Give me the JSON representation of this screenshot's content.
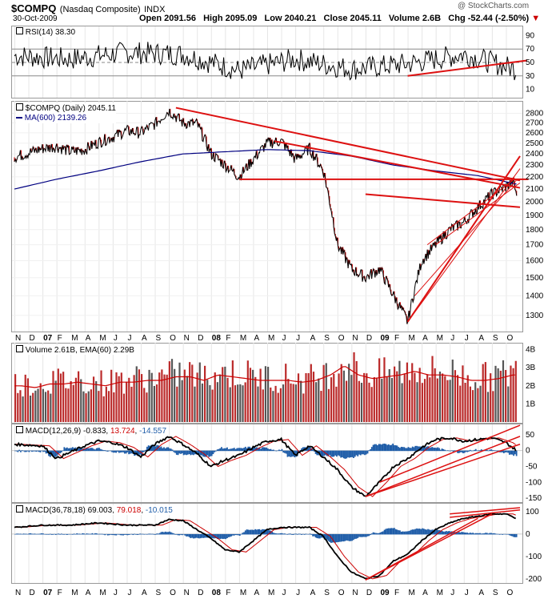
{
  "header": {
    "symbol": "$COMPQ",
    "name": "(Nasdaq Composite)",
    "exchange": "INDX",
    "date": "30-Oct-2009",
    "open": "Open 2091.56",
    "high": "High 2095.09",
    "low": "Low 2040.21",
    "close": "Close 2045.11",
    "volume": "Volume 2.6B",
    "chg": "Chg -52.44 (-2.50%)",
    "watermark": "@ StockCharts.com"
  },
  "colors": {
    "price_line": "#000000",
    "down_bar": "#cc0000",
    "ma_line": "#000080",
    "trend": "#dd1111",
    "volume_bar": "#bb2a2a",
    "histogram": "#1f5da8",
    "frame": "#999999"
  },
  "chart_data": [
    {
      "type": "line",
      "title": "RSI(14) 38.30",
      "y_ticks": [
        10,
        30,
        50,
        70,
        90
      ],
      "ylim": [
        0,
        100
      ],
      "reference_lines": [
        30,
        50,
        70
      ],
      "x": [
        "2006-11",
        "2007-03",
        "2007-07",
        "2007-10",
        "2008-03",
        "2008-07",
        "2008-11",
        "2009-03",
        "2009-07",
        "2009-10"
      ],
      "values": [
        60,
        55,
        65,
        62,
        38,
        55,
        40,
        48,
        62,
        38
      ]
    },
    {
      "type": "line",
      "title": "$COMPQ (Daily) 2045.11",
      "legend": [
        "MA(600) 2139.26"
      ],
      "scale": "log",
      "y_ticks": [
        1300,
        1400,
        1500,
        1600,
        1700,
        1800,
        1900,
        2000,
        2100,
        2200,
        2300,
        2400,
        2500,
        2600,
        2700,
        2800
      ],
      "ylim": [
        1230,
        2900
      ],
      "x_labels": [
        "N",
        "D",
        "07",
        "F",
        "M",
        "A",
        "M",
        "J",
        "J",
        "A",
        "S",
        "O",
        "N",
        "D",
        "08",
        "F",
        "M",
        "A",
        "M",
        "J",
        "J",
        "A",
        "S",
        "O",
        "N",
        "D",
        "09",
        "F",
        "M",
        "A",
        "M",
        "J",
        "J",
        "A",
        "S",
        "O"
      ],
      "price_points": [
        [
          0,
          2370
        ],
        [
          1,
          2410
        ],
        [
          2,
          2450
        ],
        [
          3,
          2470
        ],
        [
          4,
          2420
        ],
        [
          5,
          2440
        ],
        [
          6,
          2510
        ],
        [
          7,
          2560
        ],
        [
          8,
          2620
        ],
        [
          9,
          2600
        ],
        [
          10,
          2690
        ],
        [
          11,
          2830
        ],
        [
          12,
          2700
        ],
        [
          13,
          2690
        ],
        [
          14,
          2400
        ],
        [
          15,
          2300
        ],
        [
          16,
          2200
        ],
        [
          17,
          2350
        ],
        [
          18,
          2500
        ],
        [
          19,
          2520
        ],
        [
          20,
          2350
        ],
        [
          21,
          2450
        ],
        [
          22,
          2250
        ],
        [
          23,
          1700
        ],
        [
          24,
          1550
        ],
        [
          25,
          1500
        ],
        [
          26,
          1550
        ],
        [
          27,
          1400
        ],
        [
          28,
          1268
        ],
        [
          29,
          1600
        ],
        [
          30,
          1700
        ],
        [
          31,
          1800
        ],
        [
          32,
          1850
        ],
        [
          33,
          1960
        ],
        [
          34,
          2060
        ],
        [
          35,
          2120
        ],
        [
          35.5,
          2160
        ],
        [
          35.8,
          2045
        ]
      ],
      "ma600_points": [
        [
          0,
          2100
        ],
        [
          3,
          2180
        ],
        [
          6,
          2250
        ],
        [
          9,
          2330
        ],
        [
          12,
          2400
        ],
        [
          15,
          2420
        ],
        [
          18,
          2440
        ],
        [
          21,
          2430
        ],
        [
          24,
          2380
        ],
        [
          27,
          2300
        ],
        [
          30,
          2250
        ],
        [
          33,
          2210
        ],
        [
          35.8,
          2139
        ]
      ]
    },
    {
      "type": "bar",
      "title": "Volume 2.61B, EMA(60) 2.29B",
      "y_ticks": [
        "1B",
        "2B",
        "3B",
        "4B"
      ],
      "ylim": [
        0,
        4.2
      ],
      "monthly_volume_b": [
        2.0,
        1.9,
        2.1,
        2.1,
        2.2,
        2.1,
        2.0,
        2.2,
        2.2,
        2.3,
        2.3,
        2.5,
        2.5,
        2.3,
        2.6,
        2.5,
        2.4,
        2.3,
        2.3,
        2.3,
        2.2,
        2.3,
        2.6,
        3.1,
        2.6,
        2.4,
        2.5,
        2.6,
        2.8,
        2.6,
        2.6,
        2.5,
        2.3,
        2.3,
        2.4,
        2.6
      ]
    },
    {
      "type": "line",
      "title": "MACD(12,26,9) -0.833, 13.724, -14.557",
      "values_text": [
        "-0.833",
        "13.724",
        "-14.557"
      ],
      "y_ticks": [
        -150,
        -100,
        -50,
        0,
        50
      ],
      "ylim": [
        -160,
        75
      ],
      "macd_points": [
        [
          0,
          20
        ],
        [
          2,
          15
        ],
        [
          3,
          -25
        ],
        [
          4,
          -5
        ],
        [
          5,
          15
        ],
        [
          6,
          30
        ],
        [
          7,
          25
        ],
        [
          8,
          10
        ],
        [
          9,
          -20
        ],
        [
          10,
          20
        ],
        [
          11,
          45
        ],
        [
          12,
          20
        ],
        [
          13,
          -10
        ],
        [
          14,
          -50
        ],
        [
          15,
          -30
        ],
        [
          16,
          -15
        ],
        [
          17,
          10
        ],
        [
          18,
          30
        ],
        [
          19,
          35
        ],
        [
          20,
          -15
        ],
        [
          21,
          15
        ],
        [
          22,
          -20
        ],
        [
          23,
          -60
        ],
        [
          24,
          -115
        ],
        [
          25,
          -145
        ],
        [
          26,
          -100
        ],
        [
          27,
          -50
        ],
        [
          28,
          -25
        ],
        [
          29,
          10
        ],
        [
          30,
          35
        ],
        [
          31,
          40
        ],
        [
          32,
          30
        ],
        [
          33,
          35
        ],
        [
          34,
          40
        ],
        [
          35,
          25
        ],
        [
          35.8,
          -1
        ]
      ]
    },
    {
      "type": "line",
      "title": "MACD(36,78,18) 69.003, 79.018, -10.015",
      "values_text": [
        "69.003",
        "79.018",
        "-10.015"
      ],
      "y_ticks": [
        -200,
        -100,
        0,
        100
      ],
      "ylim": [
        -215,
        125
      ],
      "macd_points": [
        [
          0,
          30
        ],
        [
          2,
          40
        ],
        [
          4,
          40
        ],
        [
          6,
          50
        ],
        [
          8,
          40
        ],
        [
          10,
          40
        ],
        [
          11,
          65
        ],
        [
          12,
          60
        ],
        [
          14,
          -20
        ],
        [
          15,
          -70
        ],
        [
          16,
          -80
        ],
        [
          18,
          20
        ],
        [
          19,
          30
        ],
        [
          21,
          30
        ],
        [
          22,
          -10
        ],
        [
          23,
          -100
        ],
        [
          24,
          -170
        ],
        [
          25,
          -200
        ],
        [
          26,
          -185
        ],
        [
          27,
          -120
        ],
        [
          28,
          -90
        ],
        [
          29,
          -30
        ],
        [
          30,
          20
        ],
        [
          31,
          50
        ],
        [
          32,
          70
        ],
        [
          33,
          80
        ],
        [
          34,
          90
        ],
        [
          35,
          90
        ],
        [
          35.8,
          69
        ]
      ]
    }
  ]
}
